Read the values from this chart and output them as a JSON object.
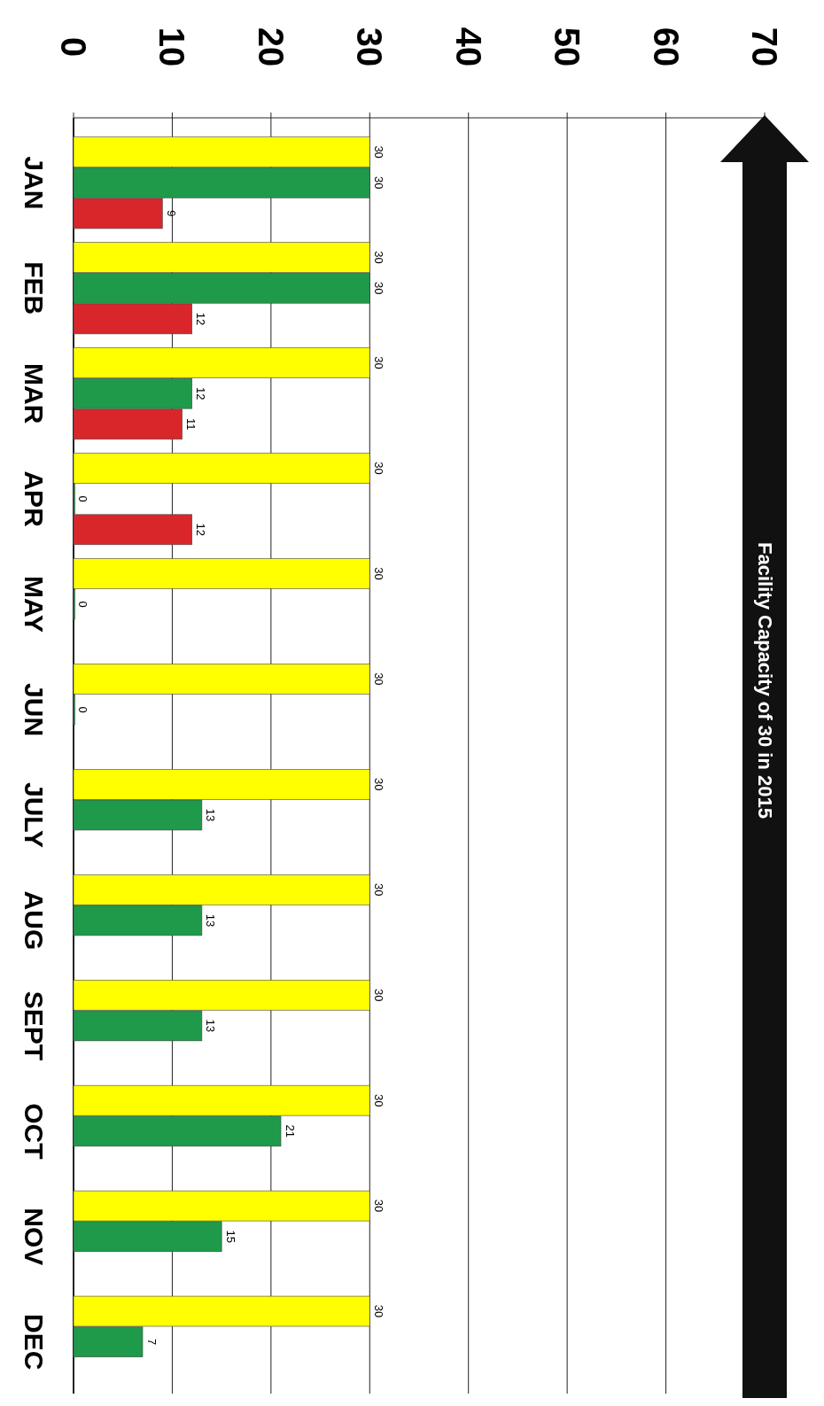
{
  "chart_data": {
    "type": "bar",
    "orientation": "horizontal",
    "categories": [
      "JAN",
      "FEB",
      "MAR",
      "APR",
      "MAY",
      "JUN",
      "JULY",
      "AUG",
      "SEPT",
      "OCT",
      "NOV",
      "DEC"
    ],
    "series": [
      {
        "color": "#ffff00",
        "values": [
          30,
          30,
          30,
          30,
          30,
          30,
          30,
          30,
          30,
          30,
          30,
          30
        ]
      },
      {
        "color": "#1e9a4a",
        "values": [
          30,
          30,
          12,
          0,
          0,
          0,
          13,
          13,
          13,
          21,
          15,
          7
        ]
      },
      {
        "color": "#d9262b",
        "values": [
          9,
          12,
          11,
          12,
          null,
          null,
          null,
          null,
          null,
          null,
          null,
          null
        ]
      }
    ],
    "xlim": [
      0,
      70
    ],
    "xticks": [
      0,
      10,
      20,
      30,
      40,
      50,
      60,
      70
    ],
    "grid": "x",
    "data_labels": true,
    "annotations": [
      "Facility Capacity of 30 in 2015"
    ]
  }
}
